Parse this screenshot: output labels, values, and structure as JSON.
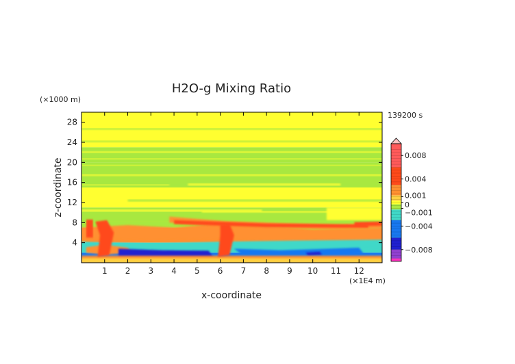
{
  "chart_data": {
    "type": "heatmap",
    "title": "H2O-g Mixing Ratio",
    "xlabel": "x-coordinate",
    "ylabel": "z-coordinate",
    "x_unit": "(×1E4 m)",
    "y_unit": "(×1000 m)",
    "time_label": "139200 s",
    "xlim": [
      0,
      13
    ],
    "ylim": [
      0,
      30
    ],
    "x_ticks": [
      1,
      2,
      3,
      4,
      5,
      6,
      7,
      8,
      9,
      10,
      11,
      12
    ],
    "y_ticks": [
      4,
      8,
      12,
      16,
      20,
      24,
      28
    ],
    "colorbar": {
      "tick_labels": [
        "0.008",
        "0.004",
        "0.001",
        "0",
        "−0.001",
        "−0.004",
        "−0.008"
      ],
      "tick_values": [
        0.008,
        0.004,
        0.001,
        0,
        -0.001,
        -0.004,
        -0.008
      ],
      "range": [
        -0.01,
        0.01
      ],
      "colors": {
        "high_cap": "#ffc0c0",
        "pos_strong": "#ff5a5a",
        "pos_mid": "#ff4a1a",
        "pos_low": "#ff9030",
        "pos_small": "#ffd040",
        "near_zero": "#ffff30",
        "neg_small": "#a8e840",
        "neg_low": "#40d8c8",
        "neg_mid": "#1878f0",
        "neg_strong": "#2020d0",
        "neg_very": "#9040d0",
        "neg_cap": "#ff30c0"
      }
    },
    "bands": [
      {
        "z_from": 23,
        "z_to": 30,
        "category": "near_zero"
      },
      {
        "z_from": 20,
        "z_to": 23,
        "category": "neg_small"
      },
      {
        "z_from": 15,
        "z_to": 20,
        "category": "neg_small"
      },
      {
        "z_from": 11,
        "z_to": 15,
        "category": "near_zero"
      },
      {
        "z_from": 7,
        "z_to": 11,
        "category": "neg_small"
      },
      {
        "z_from": 4,
        "z_to": 7,
        "category": "pos_low"
      },
      {
        "z_from": 2,
        "z_to": 4,
        "category": "neg_low"
      },
      {
        "z_from": 0,
        "z_to": 2,
        "category": "neg_mid"
      }
    ]
  }
}
